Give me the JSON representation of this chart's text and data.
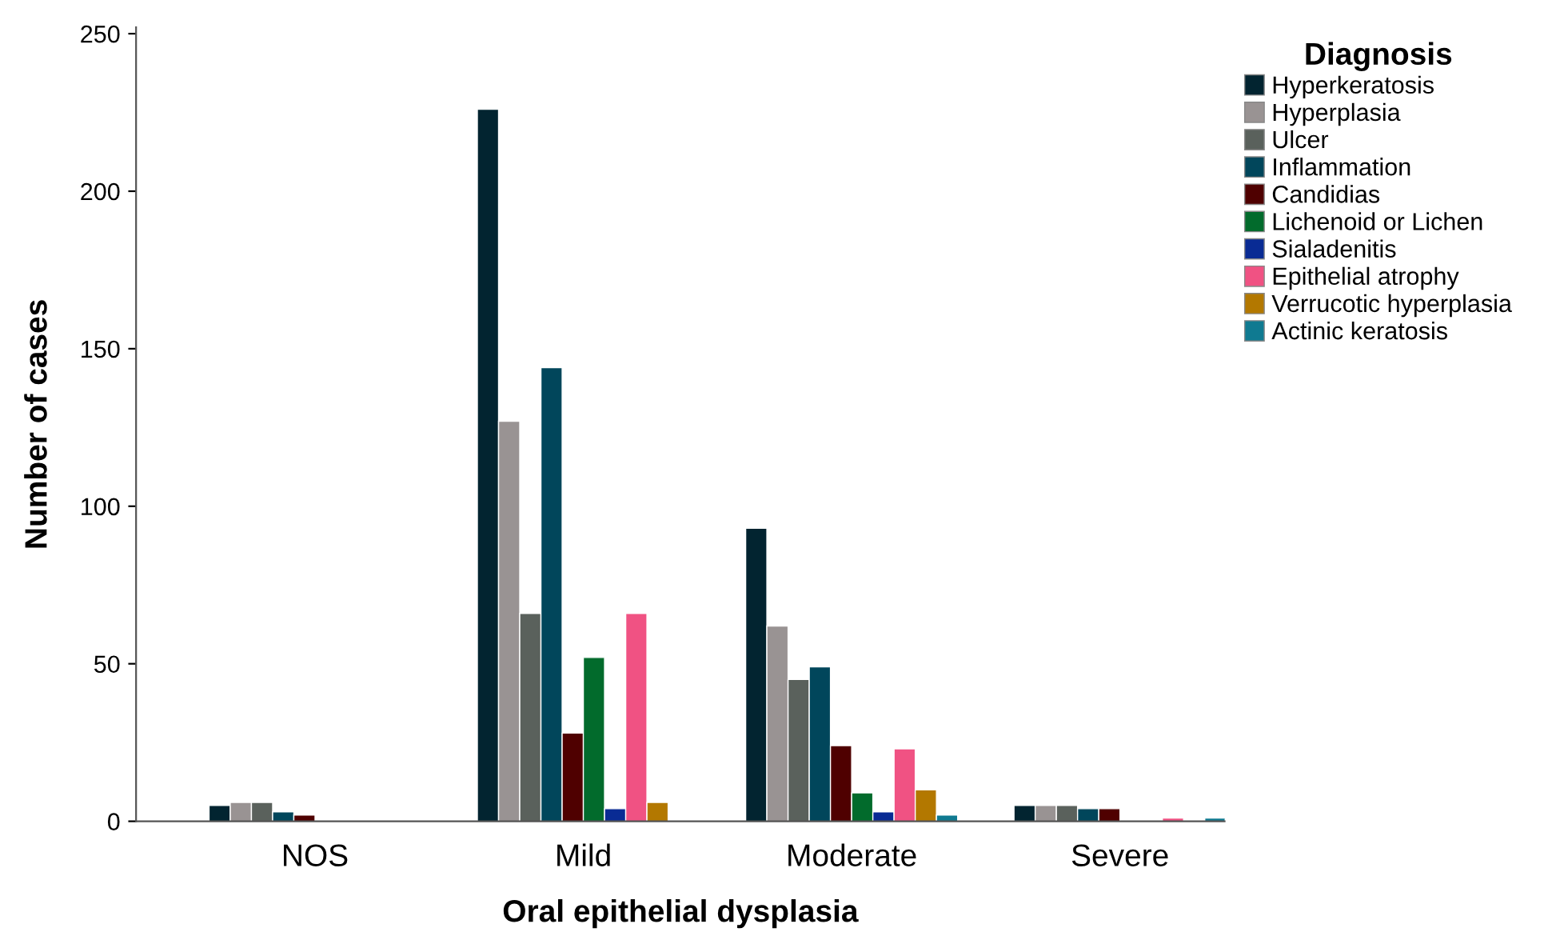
{
  "chart_data": {
    "type": "bar",
    "xlabel": "Oral epithelial dysplasia",
    "ylabel": "Number of cases",
    "legend_title": "Diagnosis",
    "categories": [
      "NOS",
      "Mild",
      "Moderate",
      "Severe"
    ],
    "series": [
      {
        "name": "Hyperkeratosis",
        "color": "#022430",
        "values": [
          5,
          226,
          93,
          5
        ]
      },
      {
        "name": "Hyperplasia",
        "color": "#999393",
        "values": [
          6,
          127,
          62,
          5
        ]
      },
      {
        "name": "Ulcer",
        "color": "#5a615c",
        "values": [
          6,
          66,
          45,
          5
        ]
      },
      {
        "name": "Inflammation",
        "color": "#01465b",
        "values": [
          3,
          144,
          49,
          4
        ]
      },
      {
        "name": "Candidias",
        "color": "#4f0000",
        "values": [
          2,
          28,
          24,
          4
        ]
      },
      {
        "name": "Lichenoid or Lichen",
        "color": "#026b2c",
        "values": [
          null,
          52,
          9,
          null
        ]
      },
      {
        "name": "Sialadenitis",
        "color": "#092b94",
        "values": [
          null,
          4,
          3,
          null
        ]
      },
      {
        "name": "Epithelial atrophy",
        "color": "#f05283",
        "values": [
          null,
          66,
          23,
          1
        ]
      },
      {
        "name": "Verrucotic hyperplasia",
        "color": "#b37800",
        "values": [
          null,
          6,
          10,
          null
        ]
      },
      {
        "name": "Actinic keratosis",
        "color": "#0f7a91",
        "values": [
          null,
          null,
          2,
          1
        ]
      }
    ],
    "ylim": [
      0,
      252
    ],
    "yticks": [
      0,
      50,
      100,
      150,
      200,
      250
    ],
    "grid": false,
    "legend": "top right"
  }
}
